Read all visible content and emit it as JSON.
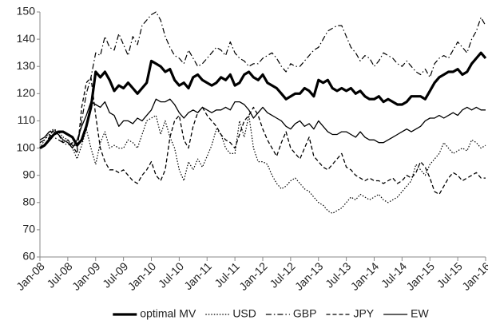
{
  "chart_data": {
    "type": "line",
    "categories": [
      "Jan-08",
      null,
      null,
      null,
      null,
      null,
      "Jul-08",
      null,
      null,
      null,
      null,
      null,
      "Jan-09",
      null,
      null,
      null,
      null,
      null,
      "Jul-09",
      null,
      null,
      null,
      null,
      null,
      "Jan-10",
      null,
      null,
      null,
      null,
      null,
      "Jul-10",
      null,
      null,
      null,
      null,
      null,
      "Jan-11",
      null,
      null,
      null,
      null,
      null,
      "Jul-11",
      null,
      null,
      null,
      null,
      null,
      "Jan-12",
      null,
      null,
      null,
      null,
      null,
      "Jul-12",
      null,
      null,
      null,
      null,
      null,
      "Jan-13",
      null,
      null,
      null,
      null,
      null,
      "Jul-13",
      null,
      null,
      null,
      null,
      null,
      "Jan-14",
      null,
      null,
      null,
      null,
      null,
      "Jul-14",
      null,
      null,
      null,
      null,
      null,
      "Jan-15",
      null,
      null,
      null,
      null,
      null,
      "Jul-15",
      null,
      null,
      null,
      null,
      null,
      "Jan-16"
    ],
    "series": [
      {
        "name": "optimal MV",
        "color": "#000000",
        "values": [
          100,
          101,
          103,
          105,
          106,
          106,
          105,
          104,
          101,
          103,
          108,
          115,
          128,
          126,
          128,
          125,
          121,
          123,
          122,
          124,
          122,
          120,
          122,
          124,
          132,
          131,
          130,
          128,
          129,
          125,
          123,
          124,
          122,
          126,
          127,
          125,
          124,
          123,
          124,
          126,
          125,
          127,
          123,
          124,
          127,
          128,
          126,
          125,
          127,
          124,
          123,
          122,
          120,
          118,
          119,
          120,
          120,
          122,
          121,
          119,
          125,
          124,
          125,
          122,
          121,
          122,
          121,
          122,
          120,
          121,
          119,
          118,
          118,
          119,
          117,
          118,
          117,
          116,
          116,
          117,
          119,
          119,
          119,
          118,
          121,
          124,
          126,
          127,
          128,
          128,
          129,
          127,
          128,
          131,
          133,
          135,
          133
        ]
      },
      {
        "name": "USD",
        "color": "#000000",
        "values": [
          100,
          103,
          106,
          107,
          106,
          104,
          103,
          100,
          96,
          101,
          107,
          100,
          94,
          102,
          106,
          100,
          101,
          100,
          100,
          103,
          102,
          100,
          105,
          110,
          111,
          112,
          105,
          110,
          104,
          100,
          92,
          88,
          95,
          92,
          96,
          93,
          97,
          101,
          107,
          105,
          100,
          98,
          98,
          110,
          104,
          112,
          100,
          95,
          95,
          94,
          90,
          87,
          85,
          86,
          88,
          89,
          87,
          85,
          84,
          82,
          80,
          79,
          77,
          76,
          77,
          78,
          80,
          82,
          81,
          83,
          82,
          81,
          82,
          83,
          81,
          80,
          81,
          82,
          84,
          86,
          88,
          94,
          92,
          90,
          94,
          96,
          98,
          102,
          100,
          98,
          99,
          100,
          99,
          103,
          102,
          100,
          101
        ]
      },
      {
        "name": "GBP",
        "color": "#000000",
        "values": [
          102,
          103,
          105,
          104,
          103,
          102,
          101,
          102,
          100,
          110,
          120,
          126,
          135,
          134,
          141,
          137,
          136,
          142,
          138,
          134,
          141,
          138,
          145,
          147,
          149,
          150,
          147,
          141,
          137,
          134,
          133,
          131,
          136,
          133,
          130,
          131,
          133,
          135,
          137,
          136,
          134,
          139,
          135,
          133,
          132,
          130,
          131,
          131,
          133,
          134,
          135,
          133,
          130,
          128,
          131,
          130,
          130,
          132,
          134,
          136,
          137,
          140,
          143,
          144,
          145,
          145,
          141,
          137,
          135,
          132,
          134,
          133,
          130,
          132,
          135,
          134,
          133,
          131,
          130,
          132,
          130,
          128,
          127,
          129,
          126,
          131,
          133,
          134,
          133,
          136,
          139,
          137,
          135,
          140,
          143,
          148,
          145
        ]
      },
      {
        "name": "JPY",
        "color": "#000000",
        "values": [
          100,
          101,
          104,
          107,
          105,
          102,
          103,
          101,
          98,
          115,
          124,
          126,
          112,
          100,
          95,
          92,
          92,
          91,
          92,
          90,
          88,
          87,
          90,
          92,
          95,
          90,
          88,
          92,
          104,
          110,
          112,
          103,
          100,
          108,
          113,
          115,
          112,
          110,
          108,
          105,
          103,
          102,
          100,
          105,
          110,
          112,
          115,
          112,
          107,
          103,
          100,
          97,
          102,
          106,
          100,
          98,
          96,
          100,
          104,
          97,
          95,
          93,
          92,
          94,
          96,
          98,
          93,
          92,
          90,
          89,
          88,
          89,
          88,
          88,
          87,
          88,
          89,
          87,
          88,
          90,
          89,
          91,
          95,
          93,
          89,
          84,
          83,
          86,
          89,
          91,
          90,
          88,
          89,
          90,
          91,
          89,
          89
        ]
      },
      {
        "name": "EW",
        "color": "#000000",
        "values": [
          103,
          104,
          106,
          106,
          105,
          103,
          102,
          100,
          103,
          108,
          112,
          117,
          116,
          115,
          117,
          113,
          112,
          108,
          110,
          110,
          109,
          111,
          110,
          112,
          114,
          118,
          117,
          117,
          118,
          116,
          113,
          111,
          113,
          114,
          113,
          115,
          114,
          113,
          114,
          114,
          115,
          114,
          117,
          117,
          116,
          114,
          111,
          113,
          115,
          113,
          112,
          111,
          110,
          108,
          107,
          109,
          110,
          108,
          109,
          107,
          110,
          108,
          106,
          105,
          105,
          106,
          106,
          105,
          104,
          106,
          104,
          103,
          103,
          102,
          102,
          103,
          104,
          105,
          106,
          107,
          106,
          107,
          108,
          110,
          111,
          111,
          112,
          111,
          112,
          113,
          112,
          114,
          115,
          114,
          115,
          114,
          114
        ]
      }
    ],
    "ylim": [
      60,
      150
    ],
    "yticks": [
      60,
      70,
      80,
      90,
      100,
      110,
      120,
      130,
      140,
      150
    ],
    "grid": false,
    "legend": "bottom"
  }
}
